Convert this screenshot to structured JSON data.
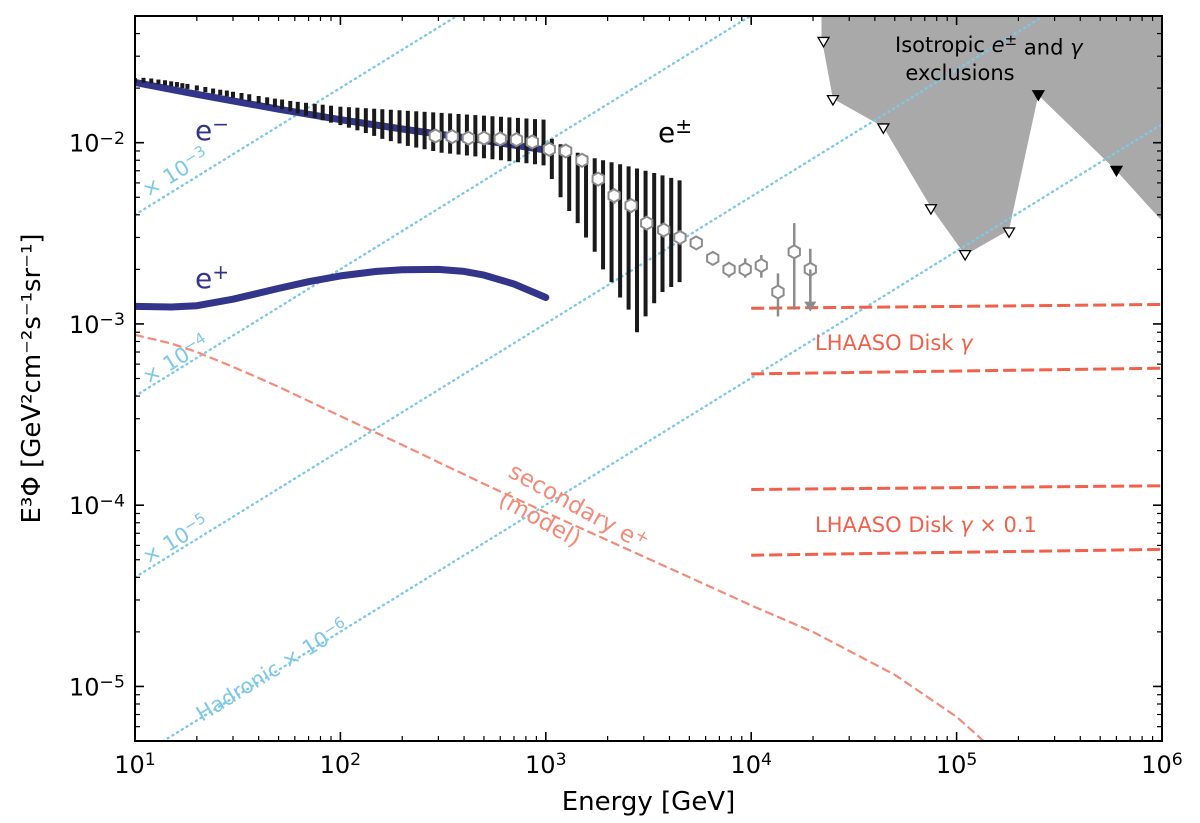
{
  "chart_data": {
    "type": "line",
    "title": "",
    "xlabel": "Energy [GeV]",
    "ylabel": "E³Φ [GeV²cm⁻²s⁻¹sr⁻¹]",
    "xscale": "log",
    "yscale": "log",
    "xlim": [
      10,
      1000000
    ],
    "ylim": [
      5e-06,
      0.05
    ],
    "x_ticks": [
      10,
      100,
      1000,
      10000,
      100000,
      1000000
    ],
    "x_tick_labels": [
      [
        "10",
        "1"
      ],
      [
        "10",
        "2"
      ],
      [
        "10",
        "3"
      ],
      [
        "10",
        "4"
      ],
      [
        "10",
        "5"
      ],
      [
        "10",
        "6"
      ]
    ],
    "y_ticks": [
      1e-05,
      0.0001,
      0.001,
      0.01
    ],
    "y_tick_labels": [
      [
        "10",
        "−5"
      ],
      [
        "10",
        "−4"
      ],
      [
        "10",
        "−3"
      ],
      [
        "10",
        "−2"
      ]
    ],
    "colors": {
      "electron": "#33358a",
      "positron": "#33358a",
      "data_black": "#1a1a1a",
      "data_gray": "#8c8c8c",
      "exclusion_fill": "#a9a9a9",
      "hadronic": "#7ec8e8",
      "lhaaso": "#f0604a",
      "secondary": "#f48a78"
    },
    "electron_curve": {
      "label": [
        "e",
        "−"
      ],
      "x": [
        10,
        20,
        50,
        100,
        200,
        500,
        1000
      ],
      "y": [
        0.0215,
        0.0185,
        0.0153,
        0.0134,
        0.0119,
        0.0103,
        0.0091
      ]
    },
    "positron_curve": {
      "label": [
        "e",
        "+"
      ],
      "x": [
        10,
        15,
        20,
        30,
        50,
        70,
        100,
        150,
        200,
        300,
        400,
        500,
        700,
        1000
      ],
      "y": [
        0.00125,
        0.00124,
        0.00126,
        0.00137,
        0.00157,
        0.00171,
        0.00184,
        0.00195,
        0.00199,
        0.002,
        0.00195,
        0.00186,
        0.00166,
        0.0014
      ]
    },
    "data_label": [
      "e",
      "±"
    ],
    "black_data": {
      "x": [
        10,
        11,
        12,
        13,
        14,
        15,
        16,
        17,
        18,
        20,
        22,
        24,
        26,
        28,
        30,
        33,
        36,
        40,
        44,
        48,
        52,
        57,
        62,
        68,
        75,
        82,
        90,
        100,
        110,
        121,
        133,
        146,
        160,
        176,
        194,
        213,
        234,
        257,
        283,
        311,
        342,
        376,
        413,
        454,
        500,
        550,
        605,
        665,
        732,
        805,
        886,
        975,
        1070,
        1180,
        1300,
        1430,
        1570,
        1730,
        1900,
        2090,
        2300,
        2530,
        2780,
        3060,
        3370,
        3700,
        4080,
        4480
      ],
      "y": [
        0.022,
        0.0221,
        0.0219,
        0.0216,
        0.0214,
        0.0211,
        0.0209,
        0.0206,
        0.0204,
        0.02,
        0.0196,
        0.0192,
        0.0189,
        0.0187,
        0.0184,
        0.018,
        0.0177,
        0.0173,
        0.0169,
        0.0166,
        0.0163,
        0.0159,
        0.0156,
        0.0153,
        0.015,
        0.0147,
        0.0144,
        0.0141,
        0.0139,
        0.0137,
        0.0135,
        0.0133,
        0.0131,
        0.013,
        0.0128,
        0.0127,
        0.0126,
        0.0125,
        0.0124,
        0.0123,
        0.0122,
        0.0121,
        0.012,
        0.0119,
        0.0118,
        0.0117,
        0.0116,
        0.0115,
        0.0113,
        0.0112,
        0.011,
        0.0108,
        0.0085,
        0.0078,
        0.0072,
        0.0066,
        0.0061,
        0.0057,
        0.0053,
        0.005,
        0.0047,
        0.0044,
        0.0042,
        0.004,
        0.0038,
        0.0036,
        0.0035,
        0.0034
      ],
      "lo": [
        0.0214,
        0.0214,
        0.0213,
        0.021,
        0.0208,
        0.0205,
        0.0203,
        0.02,
        0.0198,
        0.0194,
        0.019,
        0.0186,
        0.0183,
        0.018,
        0.0177,
        0.0173,
        0.0169,
        0.0165,
        0.0161,
        0.0157,
        0.0153,
        0.0149,
        0.0145,
        0.0141,
        0.0137,
        0.0133,
        0.0129,
        0.0125,
        0.0121,
        0.0117,
        0.0113,
        0.0109,
        0.0105,
        0.0102,
        0.0099,
        0.0096,
        0.0094,
        0.0092,
        0.009,
        0.0088,
        0.0087,
        0.0086,
        0.0085,
        0.0084,
        0.0082,
        0.0081,
        0.008,
        0.0079,
        0.0078,
        0.0077,
        0.0076,
        0.0075,
        0.0063,
        0.005,
        0.0042,
        0.0036,
        0.003,
        0.0025,
        0.002,
        0.0017,
        0.0014,
        0.0012,
        0.0009,
        0.0011,
        0.0013,
        0.0015,
        0.0016,
        0.0017
      ],
      "hi": [
        0.0227,
        0.0228,
        0.0226,
        0.0223,
        0.0221,
        0.0218,
        0.0216,
        0.0213,
        0.0211,
        0.0207,
        0.0203,
        0.0199,
        0.0196,
        0.0194,
        0.0191,
        0.0188,
        0.0185,
        0.0181,
        0.0178,
        0.0175,
        0.0173,
        0.017,
        0.0168,
        0.0166,
        0.0164,
        0.0162,
        0.016,
        0.0158,
        0.0157,
        0.0156,
        0.0155,
        0.0154,
        0.0153,
        0.0152,
        0.0151,
        0.015,
        0.0149,
        0.0148,
        0.0147,
        0.0146,
        0.0145,
        0.0144,
        0.0143,
        0.0142,
        0.0141,
        0.014,
        0.0139,
        0.0138,
        0.0137,
        0.0136,
        0.0135,
        0.0134,
        0.0105,
        0.0098,
        0.009,
        0.0088,
        0.0085,
        0.0082,
        0.008,
        0.0078,
        0.0076,
        0.0074,
        0.0072,
        0.007,
        0.0068,
        0.0066,
        0.0064,
        0.0062
      ]
    },
    "gray_data": {
      "x": [
        290,
        350,
        420,
        500,
        600,
        720,
        860,
        1040,
        1250,
        1500,
        1800,
        2150,
        2600,
        3100,
        3750,
        4500,
        5400,
        6500,
        7800,
        9350,
        11200,
        13500,
        16200,
        19400
      ],
      "y": [
        0.0109,
        0.0108,
        0.0106,
        0.0106,
        0.0105,
        0.0104,
        0.0101,
        0.0092,
        0.009,
        0.008,
        0.0063,
        0.0051,
        0.0045,
        0.0036,
        0.0033,
        0.003,
        0.0028,
        0.0023,
        0.002,
        0.002,
        0.0021,
        0.0015,
        0.0025,
        0.002
      ],
      "lo": [
        0.0101,
        0.01,
        0.0098,
        0.0098,
        0.0097,
        0.0096,
        0.0093,
        0.0085,
        0.0083,
        0.0074,
        0.0058,
        0.0046,
        0.0041,
        0.0033,
        0.003,
        0.0028,
        0.0026,
        0.0021,
        0.0018,
        0.0018,
        0.0018,
        0.0011,
        0.0012,
        0.0015
      ],
      "hi": [
        0.0117,
        0.0116,
        0.0114,
        0.0114,
        0.0113,
        0.0112,
        0.0109,
        0.0099,
        0.0097,
        0.0086,
        0.0068,
        0.0056,
        0.0049,
        0.0039,
        0.0036,
        0.0032,
        0.003,
        0.0025,
        0.0022,
        0.0023,
        0.0024,
        0.0019,
        0.0036,
        0.0026
      ],
      "upper_limit": {
        "x": 19400,
        "y": 0.002,
        "to": 0.0012
      }
    },
    "exclusion_region": {
      "label": [
        "Isotropic ",
        "e",
        "±",
        " and ",
        "γ",
        "exclusions"
      ],
      "boundary": [
        [
          22000,
          0.05
        ],
        [
          22000,
          0.038
        ],
        [
          25000,
          0.0175
        ],
        [
          44000,
          0.0122
        ],
        [
          75000,
          0.0044
        ],
        [
          110000,
          0.0024
        ],
        [
          180000,
          0.0033
        ],
        [
          250000,
          0.0183
        ],
        [
          600000,
          0.007
        ],
        [
          1000000,
          0.0037
        ],
        [
          1000000,
          0.05
        ]
      ],
      "open_markers": {
        "x": [
          22500,
          25000,
          44000,
          75000,
          110000,
          180000
        ],
        "y": [
          0.036,
          0.0172,
          0.012,
          0.0043,
          0.0024,
          0.0032
        ]
      },
      "filled_markers": {
        "x": [
          250000,
          600000
        ],
        "y": [
          0.0183,
          0.007
        ]
      }
    },
    "hadronic_lines": [
      {
        "label": [
          "× 10",
          "−3"
        ],
        "y_at_10": 0.004
      },
      {
        "label": [
          "× 10",
          "−4"
        ],
        "y_at_10": 0.0004
      },
      {
        "label": [
          "× 10",
          "−5"
        ],
        "y_at_10": 4e-05
      },
      {
        "label": [
          "Hadronic × 10",
          "−6"
        ],
        "y_at_10": 4e-06
      }
    ],
    "lhaaso_lines": {
      "label_1": [
        "LHAASO Disk ",
        "γ"
      ],
      "label_2": [
        "LHAASO Disk ",
        "γ",
        " × 0.1"
      ],
      "x_start": 10000,
      "x_end": 1000000,
      "curves": [
        {
          "y0": 0.00122,
          "y1": 0.00128
        },
        {
          "y0": 0.00053,
          "y1": 0.00057
        },
        {
          "y0": 0.000122,
          "y1": 0.000128
        },
        {
          "y0": 5.3e-05,
          "y1": 5.7e-05
        }
      ]
    },
    "secondary_curve": {
      "label": [
        "secondary e",
        "+",
        "(model)"
      ],
      "x": [
        10,
        15,
        20,
        30,
        50,
        100,
        200,
        500,
        1000,
        2000,
        5000,
        10000,
        20000,
        50000,
        100000,
        150000,
        200000
      ],
      "y": [
        0.00087,
        0.00078,
        0.0007,
        0.00058,
        0.00045,
        0.00031,
        0.000215,
        0.000131,
        9.12e-05,
        6.4e-05,
        4e-05,
        2.8e-05,
        2e-05,
        1.16e-05,
        6.8e-06,
        4.5e-06,
        3.4e-06
      ]
    }
  }
}
